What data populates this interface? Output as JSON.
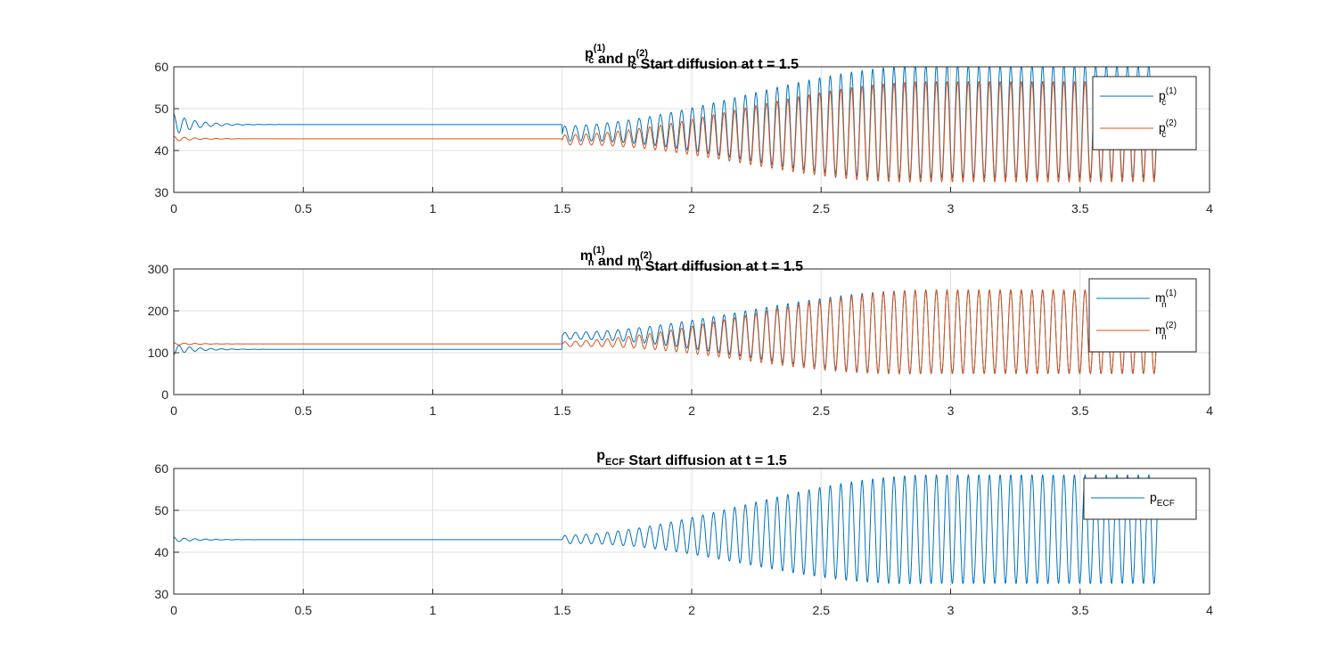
{
  "chart_data": [
    {
      "type": "line",
      "title": {
        "parts": [
          {
            "t": "p"
          },
          {
            "sub": "c",
            "sup": "(1)"
          },
          {
            "t": " and p"
          },
          {
            "sub": "c",
            "sup": "(2)"
          },
          {
            "t": "  Start diffusion at t = 1.5"
          }
        ]
      },
      "xlim": [
        0,
        4
      ],
      "ylim": [
        30,
        60
      ],
      "xticks": [
        0,
        0.5,
        1,
        1.5,
        2,
        2.5,
        3,
        3.5,
        4
      ],
      "xtick_labels": [
        "0",
        "0.5",
        "1",
        "1.5",
        "2",
        "2.5",
        "3",
        "3.5",
        "4"
      ],
      "yticks": [
        30,
        40,
        50,
        60
      ],
      "ytick_labels": [
        "30",
        "40",
        "50",
        "60"
      ],
      "grid": true,
      "legend_position": "top-right",
      "series": [
        {
          "name": "p_c^(1)",
          "legend": {
            "base": "p",
            "sub": "c",
            "sup": "(1)"
          },
          "color": "#0072BD",
          "baseline": 46.2,
          "initial_transient": {
            "amplitude": 2.5,
            "decay": 12
          },
          "oscillation": {
            "start": 1.5,
            "period": 0.041,
            "center": [
              44.0,
              47.0
            ],
            "amp_start": 1.8,
            "amp_end": 13.5,
            "rise_end": 2.9
          },
          "x_end": 3.8
        },
        {
          "name": "p_c^(2)",
          "legend": {
            "base": "p",
            "sub": "c",
            "sup": "(2)"
          },
          "color": "#D95319",
          "baseline": 42.8,
          "initial_transient": {
            "amplitude": 0.6,
            "decay": 12
          },
          "oscillation": {
            "start": 1.5,
            "period": 0.041,
            "center": [
              42.5,
              44.5
            ],
            "amp_start": 1.2,
            "amp_end": 12.0,
            "rise_end": 2.9
          },
          "x_end": 3.8
        }
      ]
    },
    {
      "type": "line",
      "title": {
        "parts": [
          {
            "t": "m"
          },
          {
            "sub": "n",
            "sup": "(1)"
          },
          {
            "t": " and m"
          },
          {
            "sub": "n",
            "sup": "(2)"
          },
          {
            "t": "  Start diffusion at t = 1.5"
          }
        ]
      },
      "xlim": [
        0,
        4
      ],
      "ylim": [
        0,
        300
      ],
      "xticks": [
        0,
        0.5,
        1,
        1.5,
        2,
        2.5,
        3,
        3.5,
        4
      ],
      "xtick_labels": [
        "0",
        "0.5",
        "1",
        "1.5",
        "2",
        "2.5",
        "3",
        "3.5",
        "4"
      ],
      "yticks": [
        0,
        100,
        200,
        300
      ],
      "ytick_labels": [
        "0",
        "100",
        "200",
        "300"
      ],
      "grid": true,
      "legend_position": "top-right",
      "series": [
        {
          "name": "m_n^(1)",
          "legend": {
            "base": "m",
            "sub": "n",
            "sup": "(1)"
          },
          "color": "#0072BD",
          "baseline": 108,
          "initial_transient": {
            "amplitude": -12,
            "decay": 12
          },
          "oscillation": {
            "start": 1.5,
            "period": 0.041,
            "center": [
              140,
              150
            ],
            "amp_start": 8,
            "amp_end": 100,
            "rise_end": 2.9
          },
          "x_end": 3.8
        },
        {
          "name": "m_n^(2)",
          "legend": {
            "base": "m",
            "sub": "n",
            "sup": "(2)"
          },
          "color": "#D95319",
          "baseline": 121,
          "initial_transient": {
            "amplitude": 3,
            "decay": 12
          },
          "oscillation": {
            "start": 1.5,
            "period": 0.041,
            "center": [
              120,
              150
            ],
            "amp_start": 6,
            "amp_end": 100,
            "rise_end": 2.9
          },
          "x_end": 3.8
        }
      ]
    },
    {
      "type": "line",
      "title": {
        "parts": [
          {
            "t": "p"
          },
          {
            "sub": "ECF"
          },
          {
            "t": "  Start diffusion at t = 1.5"
          }
        ]
      },
      "xlim": [
        0,
        4
      ],
      "ylim": [
        30,
        60
      ],
      "xticks": [
        0,
        0.5,
        1,
        1.5,
        2,
        2.5,
        3,
        3.5,
        4
      ],
      "xtick_labels": [
        "0",
        "0.5",
        "1",
        "1.5",
        "2",
        "2.5",
        "3",
        "3.5",
        "4"
      ],
      "yticks": [
        30,
        40,
        50,
        60
      ],
      "ytick_labels": [
        "30",
        "40",
        "50",
        "60"
      ],
      "grid": true,
      "legend_position": "top-right",
      "series": [
        {
          "name": "p_ECF",
          "legend": {
            "base": "p",
            "sub": "ECF"
          },
          "color": "#0072BD",
          "baseline": 43.0,
          "initial_transient": {
            "amplitude": 0.6,
            "decay": 12
          },
          "oscillation": {
            "start": 1.5,
            "period": 0.041,
            "center": [
              43.0,
              45.5
            ],
            "amp_start": 1.0,
            "amp_end": 13.0,
            "rise_end": 2.9
          },
          "x_end": 3.8
        }
      ]
    }
  ]
}
